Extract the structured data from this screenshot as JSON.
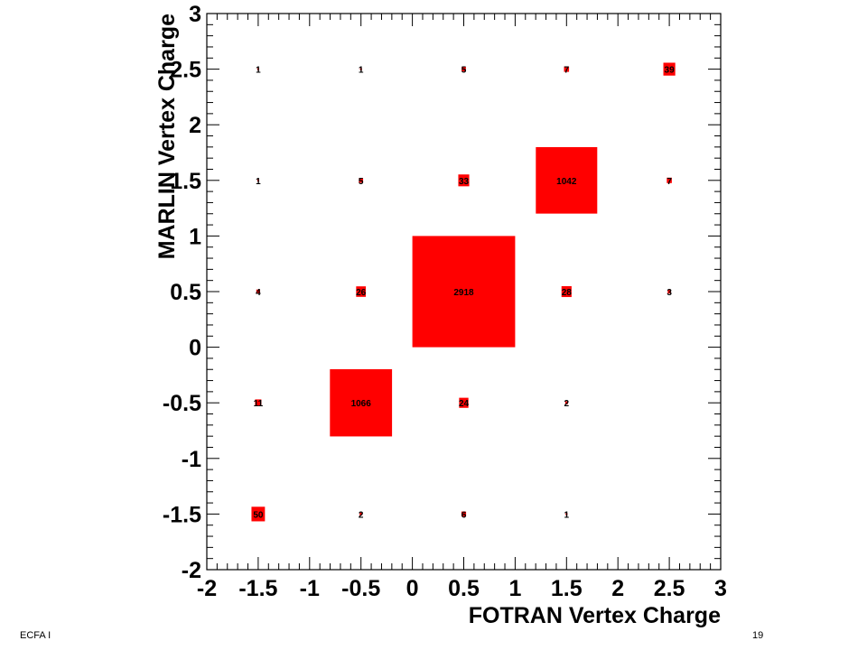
{
  "chart_data": {
    "type": "heatmap",
    "title": "",
    "xlabel": "FOTRAN Vertex Charge",
    "ylabel": "MARLIN Vertex Charge",
    "xlim": [
      -2,
      3
    ],
    "ylim": [
      -2,
      3
    ],
    "xticks": [
      "-2",
      "-1.5",
      "-1",
      "-0.5",
      "0",
      "0.5",
      "1",
      "1.5",
      "2",
      "2.5",
      "3"
    ],
    "yticks": [
      "-2",
      "-1.5",
      "-1",
      "-0.5",
      "0",
      "0.5",
      "1",
      "1.5",
      "2",
      "2.5",
      "3"
    ],
    "bin_width": 1,
    "box_color": "#ff0000",
    "grid": false,
    "legend": "none",
    "cells": [
      {
        "x": -1.5,
        "y": 2.5,
        "value": 1,
        "label": "1"
      },
      {
        "x": -0.5,
        "y": 2.5,
        "value": 1,
        "label": "1"
      },
      {
        "x": 0.5,
        "y": 2.5,
        "value": 5,
        "label": "5"
      },
      {
        "x": 1.5,
        "y": 2.5,
        "value": 7,
        "label": "7"
      },
      {
        "x": 2.5,
        "y": 2.5,
        "value": 39,
        "label": "39"
      },
      {
        "x": -1.5,
        "y": 1.5,
        "value": 1,
        "label": "1"
      },
      {
        "x": -0.5,
        "y": 1.5,
        "value": 5,
        "label": "5"
      },
      {
        "x": 0.5,
        "y": 1.5,
        "value": 33,
        "label": "33"
      },
      {
        "x": 1.5,
        "y": 1.5,
        "value": 1042,
        "label": "1042"
      },
      {
        "x": 2.5,
        "y": 1.5,
        "value": 7,
        "label": "7"
      },
      {
        "x": -1.5,
        "y": 0.5,
        "value": 4,
        "label": "4"
      },
      {
        "x": -0.5,
        "y": 0.5,
        "value": 26,
        "label": "26"
      },
      {
        "x": 0.5,
        "y": 0.5,
        "value": 2918,
        "label": "2918"
      },
      {
        "x": 1.5,
        "y": 0.5,
        "value": 28,
        "label": "28"
      },
      {
        "x": 2.5,
        "y": 0.5,
        "value": 3,
        "label": "3"
      },
      {
        "x": -1.5,
        "y": -0.5,
        "value": 11,
        "label": "11"
      },
      {
        "x": -0.5,
        "y": -0.5,
        "value": 1066,
        "label": "1066"
      },
      {
        "x": 0.5,
        "y": -0.5,
        "value": 24,
        "label": "24"
      },
      {
        "x": 1.5,
        "y": -0.5,
        "value": 2,
        "label": "2"
      },
      {
        "x": -1.5,
        "y": -1.5,
        "value": 50,
        "label": "50"
      },
      {
        "x": -0.5,
        "y": -1.5,
        "value": 2,
        "label": "2"
      },
      {
        "x": 0.5,
        "y": -1.5,
        "value": 6,
        "label": "6"
      },
      {
        "x": 1.5,
        "y": -1.5,
        "value": 1,
        "label": "1"
      }
    ]
  },
  "footer": {
    "left_text": "ECFA I",
    "page_number": "19"
  }
}
